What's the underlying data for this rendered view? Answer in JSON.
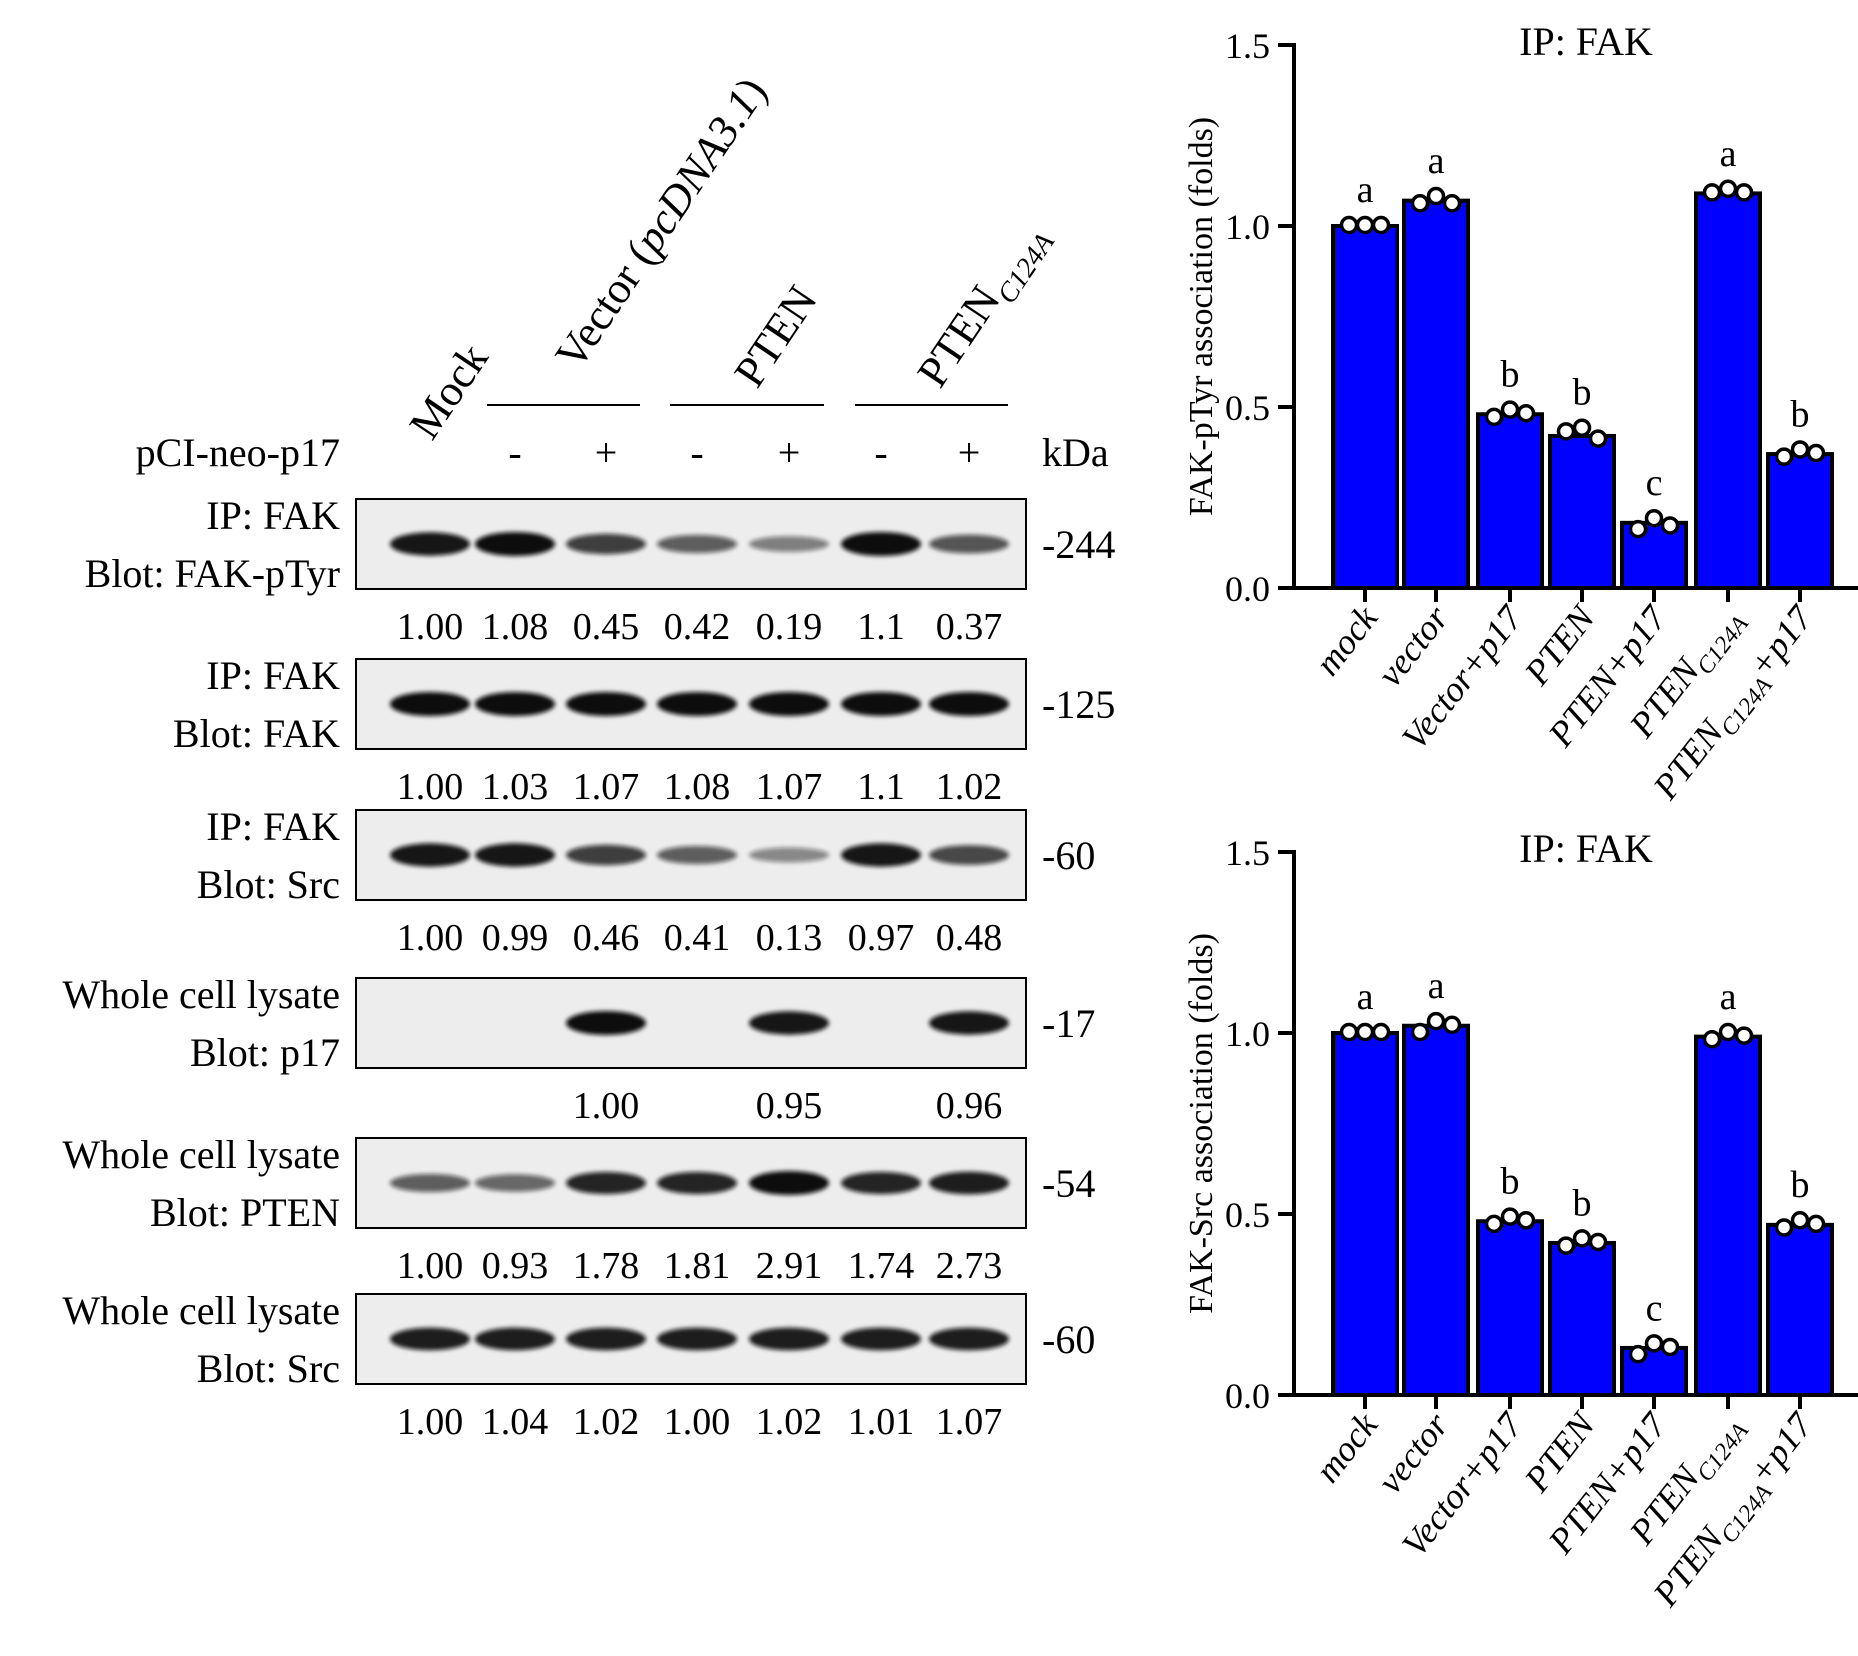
{
  "blot_panel": {
    "lane_header": {
      "mock": "Mock",
      "vector_pre": "Vector (",
      "vector_plasmid": "pcDNA3.1",
      "vector_post": ")",
      "pten": "PTEN",
      "pten_mut_main": "PTEN",
      "pten_mut_sub": "C124A"
    },
    "treatment_row": {
      "label": "pCI-neo-p17",
      "signs": [
        "-",
        "+",
        "-",
        "+",
        "-",
        "+"
      ],
      "unit": "kDa"
    },
    "blots": [
      {
        "line1": "IP: FAK",
        "line2": "Blot: FAK-pTyr",
        "kda": "-244",
        "values": [
          "1.00",
          "1.08",
          "0.45",
          "0.42",
          "0.19",
          "1.1",
          "0.37"
        ],
        "bands": [
          0.95,
          1.0,
          0.7,
          0.5,
          0.3,
          1.0,
          0.55
        ]
      },
      {
        "line1": "IP: FAK",
        "line2": "Blot: FAK",
        "kda": "-125",
        "values": [
          "1.00",
          "1.03",
          "1.07",
          "1.08",
          "1.07",
          "1.1",
          "1.02"
        ],
        "bands": [
          1.0,
          1.0,
          1.0,
          1.0,
          1.0,
          1.0,
          1.0
        ]
      },
      {
        "line1": "IP: FAK",
        "line2": "Blot: Src",
        "kda": "-60",
        "values": [
          "1.00",
          "0.99",
          "0.46",
          "0.41",
          "0.13",
          "0.97",
          "0.48"
        ],
        "bands": [
          0.95,
          0.95,
          0.7,
          0.5,
          0.25,
          0.95,
          0.65
        ]
      },
      {
        "line1": "Whole cell lysate",
        "line2": "Blot: p17",
        "kda": "-17",
        "values": [
          "",
          "",
          "1.00",
          "",
          "0.95",
          "",
          "0.96"
        ],
        "bands": [
          0,
          0,
          1.0,
          0,
          0.95,
          0,
          0.95
        ]
      },
      {
        "line1": "Whole cell lysate",
        "line2": "Blot: PTEN",
        "kda": "-54",
        "values": [
          "1.00",
          "0.93",
          "1.78",
          "1.81",
          "2.91",
          "1.74",
          "2.73"
        ],
        "bands": [
          0.5,
          0.45,
          0.85,
          0.85,
          1.0,
          0.85,
          0.9
        ]
      },
      {
        "line1": "Whole cell lysate",
        "line2": "Blot: Src",
        "kda": "-60",
        "values": [
          "1.00",
          "1.04",
          "1.02",
          "1.00",
          "1.02",
          "1.01",
          "1.07"
        ],
        "bands": [
          0.9,
          0.9,
          0.9,
          0.9,
          0.9,
          0.9,
          0.9
        ]
      }
    ]
  },
  "chart_data": [
    {
      "type": "bar",
      "title": "IP: FAK",
      "ylabel": "FAK-pTyr association (folds)",
      "xlabel": "",
      "ylim": [
        0,
        1.5
      ],
      "yticks": [
        "0.0",
        "0.5",
        "1.0",
        "1.5"
      ],
      "categories": [
        {
          "main": "mock",
          "sub": "",
          "post": ""
        },
        {
          "main": "vector",
          "sub": "",
          "post": ""
        },
        {
          "main": "Vector+p17",
          "sub": "",
          "post": ""
        },
        {
          "main": "PTEN",
          "sub": "",
          "post": ""
        },
        {
          "main": "PTEN+p17",
          "sub": "",
          "post": ""
        },
        {
          "main": "PTEN",
          "sub": "C124A",
          "post": ""
        },
        {
          "main": "PTEN",
          "sub": "C124A",
          "post": "+p17"
        }
      ],
      "values": [
        1.0,
        1.07,
        0.48,
        0.42,
        0.18,
        1.09,
        0.37
      ],
      "points": [
        [
          1.0,
          1.0,
          1.0
        ],
        [
          1.06,
          1.08,
          1.06
        ],
        [
          0.47,
          0.49,
          0.48
        ],
        [
          0.43,
          0.44,
          0.41
        ],
        [
          0.16,
          0.19,
          0.17
        ],
        [
          1.09,
          1.1,
          1.09
        ],
        [
          0.36,
          0.38,
          0.37
        ]
      ],
      "labels": [
        "a",
        "a",
        "b",
        "b",
        "c",
        "a",
        "b"
      ],
      "bar_color": "#0000ff"
    },
    {
      "type": "bar",
      "title": "IP: FAK",
      "ylabel": "FAK-Src association (folds)",
      "xlabel": "",
      "ylim": [
        0,
        1.5
      ],
      "yticks": [
        "0.0",
        "0.5",
        "1.0",
        "1.5"
      ],
      "categories": [
        {
          "main": "mock",
          "sub": "",
          "post": ""
        },
        {
          "main": "vector",
          "sub": "",
          "post": ""
        },
        {
          "main": "Vector+p17",
          "sub": "",
          "post": ""
        },
        {
          "main": "PTEN",
          "sub": "",
          "post": ""
        },
        {
          "main": "PTEN+p17",
          "sub": "",
          "post": ""
        },
        {
          "main": "PTEN",
          "sub": "C124A",
          "post": ""
        },
        {
          "main": "PTEN",
          "sub": "C124A",
          "post": "+p17"
        }
      ],
      "values": [
        1.0,
        1.02,
        0.48,
        0.42,
        0.13,
        0.99,
        0.47
      ],
      "points": [
        [
          1.0,
          1.0,
          1.0
        ],
        [
          1.0,
          1.03,
          1.02
        ],
        [
          0.47,
          0.49,
          0.48
        ],
        [
          0.41,
          0.43,
          0.42
        ],
        [
          0.11,
          0.14,
          0.13
        ],
        [
          0.98,
          1.0,
          0.99
        ],
        [
          0.46,
          0.48,
          0.47
        ]
      ],
      "labels": [
        "a",
        "a",
        "b",
        "b",
        "c",
        "a",
        "b"
      ],
      "bar_color": "#0000ff"
    }
  ]
}
